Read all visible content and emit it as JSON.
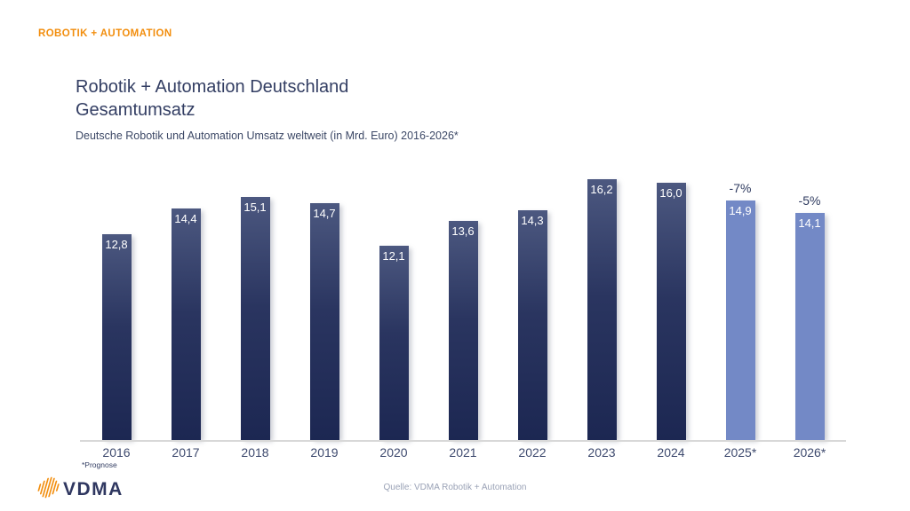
{
  "brand": {
    "label": "ROBOTIK + AUTOMATION"
  },
  "slide": {
    "title_line1": "Robotik + Automation Deutschland",
    "title_line2": "Gesamtumsatz",
    "subtitle": "Deutsche Robotik und Automation Umsatz weltweit (in Mrd. Euro) 2016-2026*",
    "footnote": "*Prognose",
    "source": "Quelle: VDMA Robotik + Automation"
  },
  "logo": {
    "text": "VDMA",
    "icon": "vdma-waveform-icon",
    "icon_color": "#F28E0E"
  },
  "colors": {
    "brand_orange": "#F28E0E",
    "title_navy": "#333E63",
    "bar_dark_top": "#4C5880",
    "bar_dark_bottom": "#1C2752",
    "bar_forecast": "#7389C6",
    "axis_line": "#D8D8D8",
    "year_label": "#3E4A6E",
    "value_label": "#FFFFFF",
    "source_text": "#9AA2B6"
  },
  "chart_data": {
    "type": "bar",
    "title": "Robotik + Automation Deutschland Gesamtumsatz",
    "subtitle": "Deutsche Robotik und Automation Umsatz weltweit (in Mrd. Euro) 2016-2026*",
    "unit": "Mrd. Euro",
    "xlabel": "",
    "ylabel": "",
    "ylim": [
      0,
      17
    ],
    "grid": false,
    "legend": false,
    "categories": [
      "2016",
      "2017",
      "2018",
      "2019",
      "2020",
      "2021",
      "2022",
      "2023",
      "2024",
      "2025*",
      "2026*"
    ],
    "values": [
      12.8,
      14.4,
      15.1,
      14.7,
      12.1,
      13.6,
      14.3,
      16.2,
      16.0,
      14.9,
      14.1
    ],
    "value_labels": [
      "12,8",
      "14,4",
      "15,1",
      "14,7",
      "12,1",
      "13,6",
      "14,3",
      "16,2",
      "16,0",
      "14,9",
      "14,1"
    ],
    "forecast_flags": [
      false,
      false,
      false,
      false,
      false,
      false,
      false,
      false,
      false,
      true,
      true
    ],
    "annotations": [
      {
        "category": "2025*",
        "label": "-7%"
      },
      {
        "category": "2026*",
        "label": "-5%"
      }
    ]
  }
}
